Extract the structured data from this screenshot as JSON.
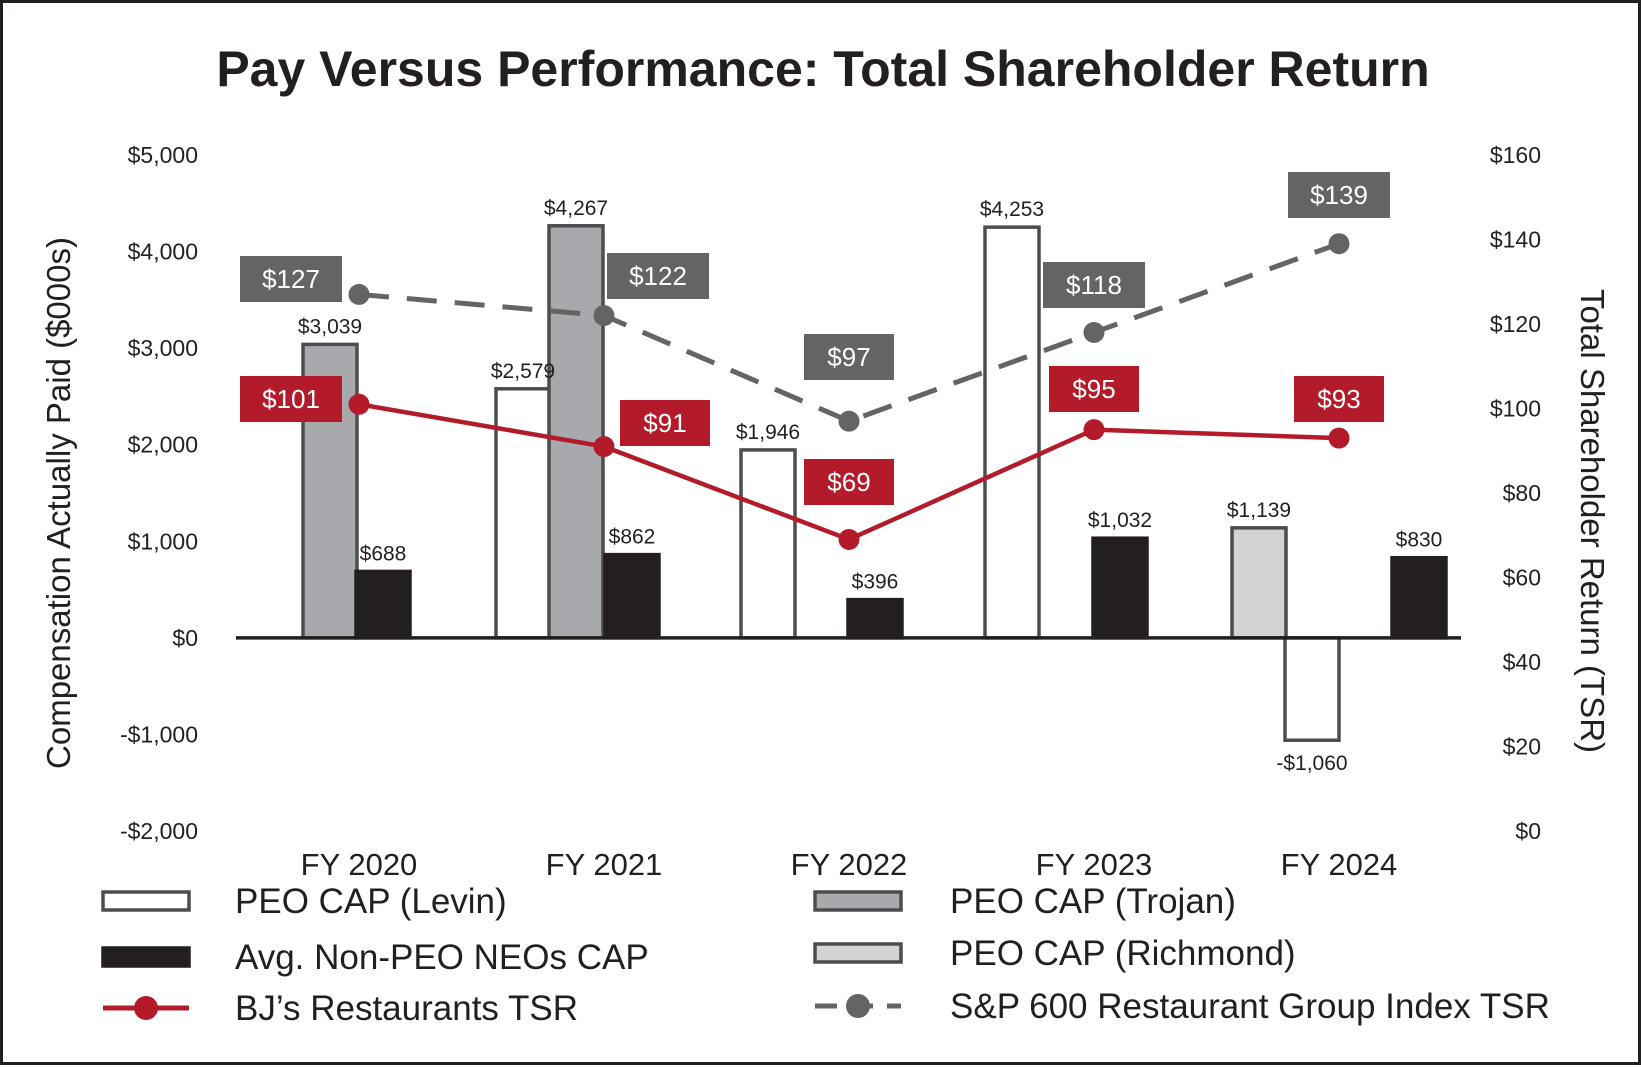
{
  "chart_data": {
    "type": "bar",
    "title": "Pay Versus Performance: Total Shareholder Return",
    "categories": [
      "FY 2020",
      "FY 2021",
      "FY 2022",
      "FY 2023",
      "FY 2024"
    ],
    "y_left": {
      "label": "Compensation Actually Paid ($000s)",
      "lim": [
        -2000,
        5000
      ],
      "ticks": [
        5000,
        4000,
        3000,
        2000,
        1000,
        0,
        -1000,
        -2000
      ],
      "tick_labels": [
        "$5,000",
        "$4,000",
        "$3,000",
        "$2,000",
        "$1,000",
        "$0",
        "-$1,000",
        "-$2,000"
      ]
    },
    "y_right": {
      "label": "Total Shareholder Return (TSR)",
      "lim": [
        0,
        160
      ],
      "ticks": [
        160,
        140,
        120,
        100,
        80,
        60,
        40,
        20,
        0
      ],
      "tick_labels": [
        "$160",
        "$140",
        "$120",
        "$100",
        "$80",
        "$60",
        "$40",
        "$20",
        "$0"
      ]
    },
    "bar_series": [
      {
        "key": "levin",
        "name": "PEO CAP (Levin)",
        "fill": "#ffffff",
        "stroke": "#4d4d4f",
        "values": [
          null,
          2579,
          1946,
          4253,
          -1060
        ],
        "labels": [
          null,
          "$2,579",
          "$1,946",
          "$4,253",
          "-$1,060"
        ]
      },
      {
        "key": "trojan",
        "name": "PEO CAP (Trojan)",
        "fill": "#a7a9ac",
        "stroke": "#4d4d4f",
        "values": [
          3039,
          4267,
          null,
          null,
          null
        ],
        "labels": [
          "$3,039",
          "$4,267",
          null,
          null,
          null
        ]
      },
      {
        "key": "richmond",
        "name": "PEO CAP (Richmond)",
        "fill": "#d1d3d4",
        "stroke": "#4d4d4f",
        "values": [
          null,
          null,
          null,
          null,
          1139
        ],
        "labels": [
          null,
          null,
          null,
          null,
          "$1,139"
        ]
      },
      {
        "key": "neo",
        "name": "Avg. Non-PEO NEOs CAP",
        "fill": "#231f20",
        "stroke": "#231f20",
        "values": [
          688,
          862,
          396,
          1032,
          830
        ],
        "labels": [
          "$688",
          "$862",
          "$396",
          "$1,032",
          "$830"
        ]
      }
    ],
    "line_series": [
      {
        "key": "bjri",
        "name": "BJ’s Restaurants TSR",
        "color": "#b31b2b",
        "dashed": false,
        "values": [
          101,
          91,
          69,
          95,
          93
        ],
        "labels": [
          "$101",
          "$91",
          "$69",
          "$95",
          "$93"
        ]
      },
      {
        "key": "sp600",
        "name": "S&P 600 Restaurant Group Index TSR",
        "color": "#636466",
        "dashed": true,
        "values": [
          127,
          122,
          97,
          118,
          139
        ],
        "labels": [
          "$127",
          "$122",
          "$97",
          "$118",
          "$139"
        ]
      }
    ],
    "legend": {
      "position": "bottom",
      "items": [
        {
          "key": "levin",
          "label": "PEO CAP (Levin)"
        },
        {
          "key": "trojan",
          "label": "PEO CAP (Trojan)"
        },
        {
          "key": "neo",
          "label": "Avg. Non-PEO NEOs CAP"
        },
        {
          "key": "richmond",
          "label": "PEO CAP (Richmond)"
        },
        {
          "key": "bjri",
          "label": "BJ’s Restaurants TSR"
        },
        {
          "key": "sp600",
          "label": "S&P 600 Restaurant Group Index TSR"
        }
      ]
    },
    "grid": false
  }
}
